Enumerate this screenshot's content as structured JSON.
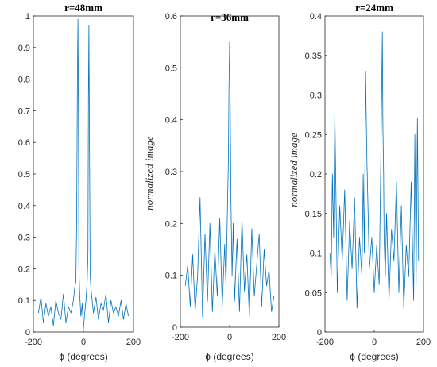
{
  "chart_data": [
    {
      "type": "line",
      "title": "r=48mm",
      "xlabel": "ϕ (degrees)",
      "ylabel": "",
      "xlim": [
        -200,
        200
      ],
      "ylim": [
        0,
        1
      ],
      "xticks": [
        "-200",
        "0",
        "200"
      ],
      "yticks": [
        "0",
        "0.1",
        "0.2",
        "0.3",
        "0.4",
        "0.5",
        "0.6",
        "0.7",
        "0.8",
        "0.9",
        "1"
      ],
      "grid": false,
      "color": "#0072BD",
      "x": [
        -180,
        -170,
        -160,
        -150,
        -140,
        -130,
        -120,
        -110,
        -100,
        -90,
        -80,
        -70,
        -60,
        -50,
        -40,
        -35,
        -30,
        -27,
        -24,
        -22,
        -20,
        -18,
        -15,
        -10,
        -5,
        0,
        5,
        10,
        15,
        18,
        20,
        22,
        24,
        27,
        30,
        35,
        40,
        50,
        60,
        70,
        80,
        90,
        100,
        110,
        120,
        130,
        140,
        150,
        160,
        170,
        180
      ],
      "y": [
        0.06,
        0.11,
        0.03,
        0.09,
        0.05,
        0.08,
        0.02,
        0.1,
        0.06,
        0.04,
        0.12,
        0.03,
        0.08,
        0.06,
        0.1,
        0.14,
        0.16,
        0.35,
        0.8,
        0.99,
        0.7,
        0.2,
        0.12,
        0.05,
        0.09,
        0.01,
        0.06,
        0.1,
        0.16,
        0.25,
        0.75,
        0.97,
        0.6,
        0.18,
        0.14,
        0.1,
        0.06,
        0.11,
        0.04,
        0.09,
        0.07,
        0.12,
        0.03,
        0.1,
        0.06,
        0.08,
        0.05,
        0.1,
        0.04,
        0.09,
        0.05
      ]
    },
    {
      "type": "line",
      "title": "r=36mm",
      "xlabel": "ϕ (degrees)",
      "ylabel": "normalized image",
      "xlim": [
        -200,
        200
      ],
      "ylim": [
        0,
        0.6
      ],
      "xticks": [
        "-200",
        "0",
        "200"
      ],
      "yticks": [
        "0",
        "0.1",
        "0.2",
        "0.3",
        "0.4",
        "0.5",
        "0.6"
      ],
      "grid": false,
      "color": "#0072BD",
      "x": [
        -180,
        -170,
        -160,
        -150,
        -140,
        -130,
        -120,
        -110,
        -100,
        -90,
        -80,
        -70,
        -60,
        -50,
        -40,
        -30,
        -20,
        -15,
        -10,
        -5,
        -3,
        0,
        3,
        5,
        10,
        15,
        20,
        30,
        40,
        50,
        60,
        70,
        80,
        90,
        100,
        110,
        120,
        130,
        140,
        150,
        160,
        170,
        180
      ],
      "y": [
        0.08,
        0.12,
        0.04,
        0.14,
        0.03,
        0.1,
        0.25,
        0.02,
        0.18,
        0.05,
        0.2,
        0.03,
        0.15,
        0.06,
        0.21,
        0.04,
        0.16,
        0.08,
        0.2,
        0.32,
        0.45,
        0.55,
        0.4,
        0.25,
        0.1,
        0.2,
        0.05,
        0.17,
        0.03,
        0.21,
        0.07,
        0.14,
        0.02,
        0.19,
        0.06,
        0.12,
        0.18,
        0.04,
        0.15,
        0.08,
        0.11,
        0.03,
        0.06
      ]
    },
    {
      "type": "line",
      "title": "r=24mm",
      "xlabel": "ϕ (degrees)",
      "ylabel": "normalized image",
      "xlim": [
        -200,
        200
      ],
      "ylim": [
        0,
        0.4
      ],
      "xticks": [
        "-200",
        "0",
        "200"
      ],
      "yticks": [
        "0",
        "0.05",
        "0.1",
        "0.15",
        "0.2",
        "0.25",
        "0.3",
        "0.35",
        "0.4"
      ],
      "grid": false,
      "color": "#0072BD",
      "x": [
        -180,
        -175,
        -170,
        -165,
        -160,
        -150,
        -140,
        -130,
        -120,
        -110,
        -100,
        -90,
        -80,
        -70,
        -60,
        -50,
        -45,
        -40,
        -35,
        -30,
        -25,
        -20,
        -10,
        0,
        10,
        20,
        25,
        30,
        33,
        35,
        38,
        40,
        45,
        50,
        60,
        70,
        80,
        90,
        100,
        110,
        120,
        130,
        140,
        150,
        160,
        165,
        170,
        175,
        180
      ],
      "y": [
        0.1,
        0.07,
        0.2,
        0.12,
        0.28,
        0.05,
        0.16,
        0.09,
        0.18,
        0.04,
        0.14,
        0.08,
        0.17,
        0.03,
        0.12,
        0.07,
        0.2,
        0.1,
        0.33,
        0.22,
        0.15,
        0.08,
        0.12,
        0.05,
        0.11,
        0.06,
        0.18,
        0.3,
        0.38,
        0.26,
        0.2,
        0.12,
        0.07,
        0.15,
        0.04,
        0.13,
        0.09,
        0.19,
        0.05,
        0.16,
        0.03,
        0.11,
        0.07,
        0.19,
        0.04,
        0.25,
        0.06,
        0.27,
        0.09
      ]
    }
  ]
}
